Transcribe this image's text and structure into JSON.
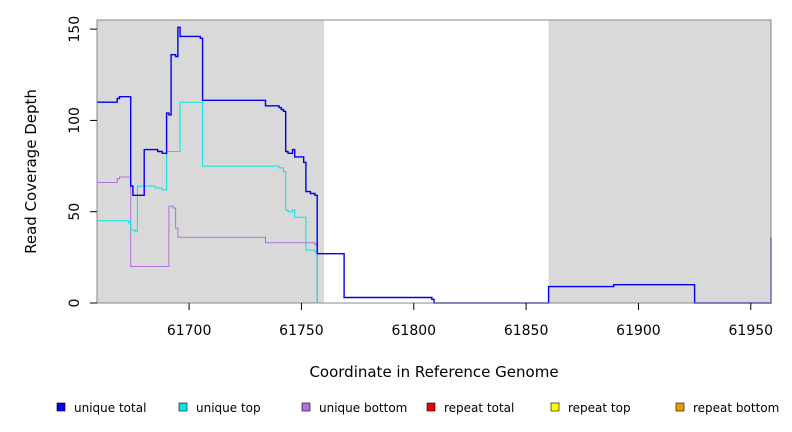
{
  "chart_data": {
    "type": "line",
    "title": "",
    "xlabel": "Coordinate in Reference Genome",
    "ylabel": "Read Coverage Depth",
    "xlim": [
      61659,
      61959
    ],
    "ylim": [
      0,
      155
    ],
    "xticks": [
      61700,
      61750,
      61800,
      61850,
      61900,
      61950
    ],
    "yticks": [
      0,
      50,
      100,
      150
    ],
    "grid": false,
    "legend_placement": "bottom",
    "shaded_regions": [
      {
        "x_start": 61659,
        "x_end": 61760,
        "color": "#d9d9d9"
      },
      {
        "x_start": 61860,
        "x_end": 61959,
        "color": "#d9d9d9"
      }
    ],
    "series": [
      {
        "name": "unique total",
        "color": "#0000ee",
        "x": [
          61659,
          61668,
          61669,
          61673,
          61674,
          61675,
          61680,
          61686,
          61688,
          61690,
          61691,
          61692,
          61694,
          61695,
          61696,
          61705,
          61706,
          61734,
          61740,
          61741,
          61742,
          61743,
          61744,
          61746,
          61747,
          61750,
          61751,
          61752,
          61754,
          61756,
          61757,
          61760,
          61769,
          61808,
          61809,
          61859,
          61860,
          61888,
          61889,
          61922,
          61925,
          61958,
          61959
        ],
        "y": [
          110,
          112,
          113,
          113,
          64,
          59,
          84,
          83,
          82,
          104,
          103,
          136,
          135,
          151,
          146,
          145,
          111,
          108,
          107,
          106,
          105,
          83,
          82,
          84,
          80,
          80,
          77,
          61,
          60,
          59,
          27,
          27,
          3,
          2,
          0,
          0,
          9,
          9,
          10,
          10,
          0,
          0,
          36
        ]
      },
      {
        "name": "unique top",
        "color": "#00e5e5",
        "x": [
          61659,
          61673,
          61674,
          61676,
          61677,
          61681,
          61685,
          61688,
          61690,
          61694,
          61696,
          61700,
          61705,
          61706,
          61740,
          61742,
          61743,
          61744,
          61746,
          61747,
          61750,
          61752,
          61756,
          61757
        ],
        "y": [
          45,
          44,
          40,
          39,
          64,
          64,
          63,
          62,
          83,
          83,
          110,
          110,
          110,
          75,
          74,
          72,
          51,
          50,
          51,
          47,
          47,
          29,
          28,
          0
        ]
      },
      {
        "name": "unique bottom",
        "color": "#b36ee0",
        "x": [
          61659,
          61668,
          61669,
          61673,
          61674,
          61690,
          61691,
          61693,
          61694,
          61695,
          61734,
          61756,
          61757
        ],
        "y": [
          66,
          68,
          69,
          69,
          20,
          20,
          53,
          52,
          41,
          36,
          33,
          32,
          0
        ]
      },
      {
        "name": "repeat total",
        "color": "#ee0000",
        "x": [
          61659,
          61757
        ],
        "y": [
          0,
          0
        ]
      },
      {
        "name": "repeat top",
        "color": "#ffff00",
        "x": [
          61659,
          61757
        ],
        "y": [
          0,
          0
        ]
      },
      {
        "name": "repeat bottom",
        "color": "#ee9a00",
        "x": [
          61659,
          61757
        ],
        "y": [
          0,
          0
        ]
      }
    ]
  }
}
